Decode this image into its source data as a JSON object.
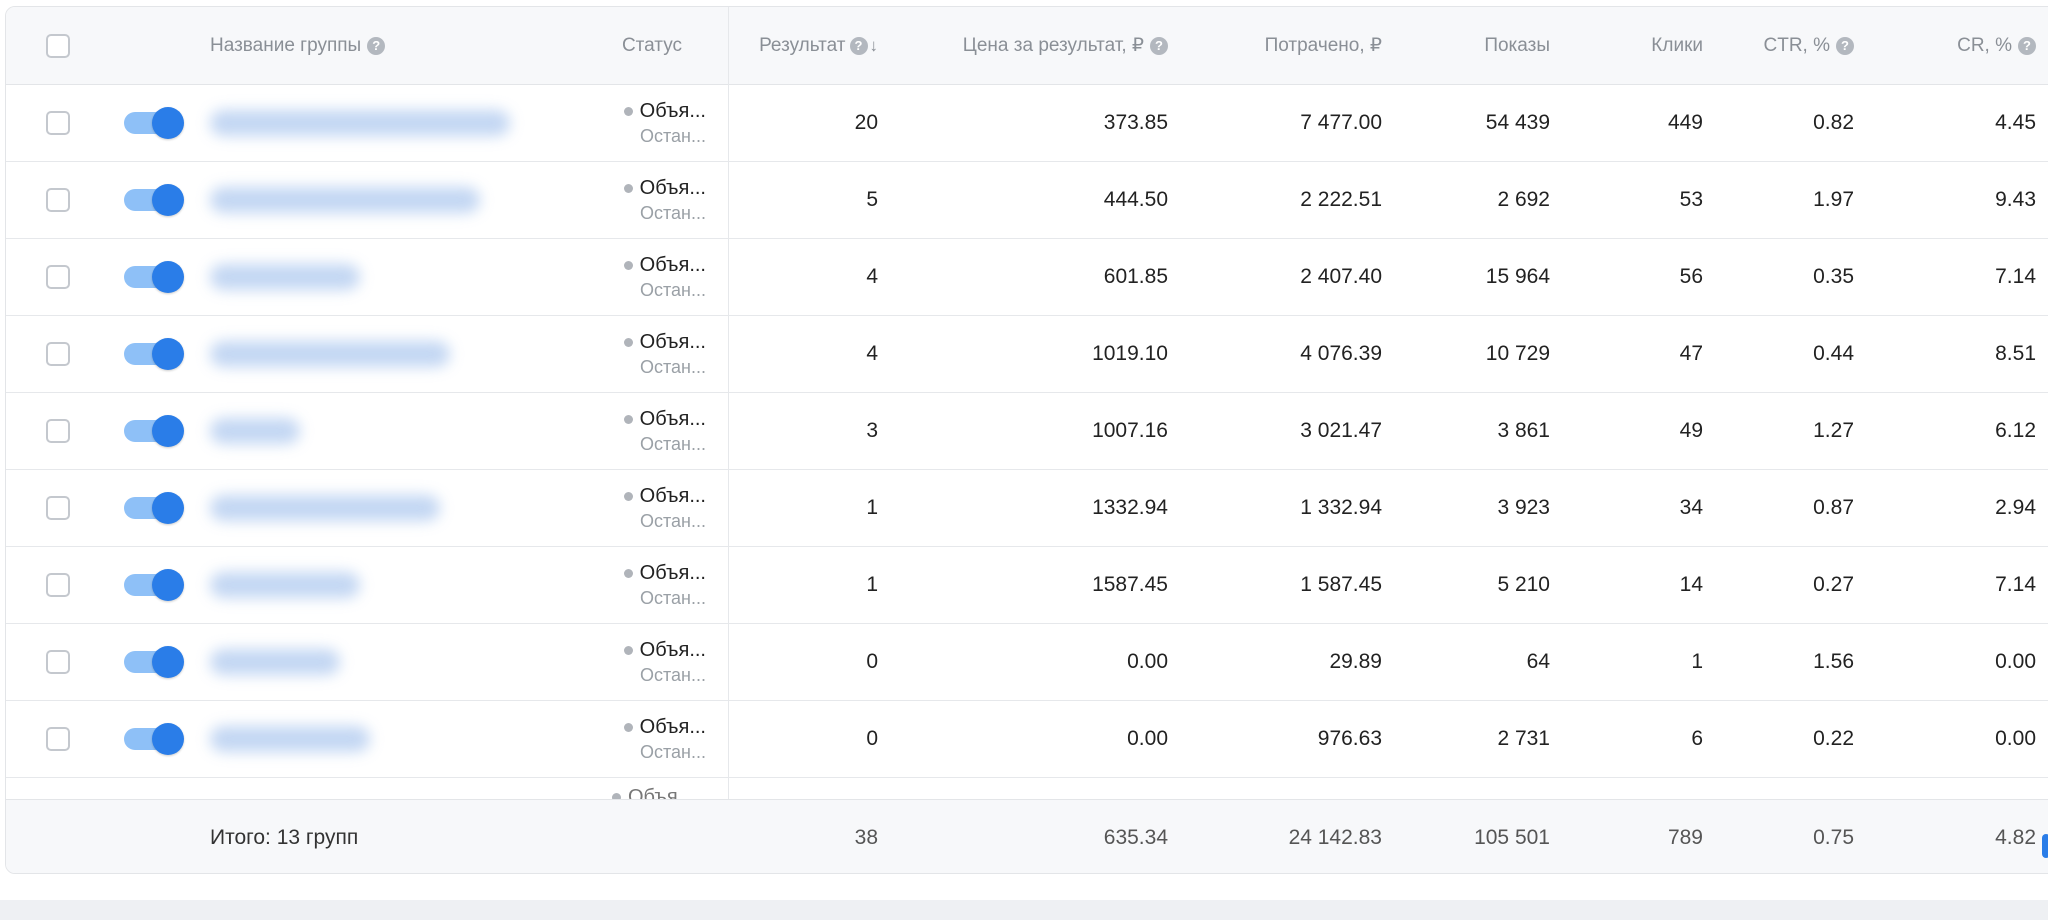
{
  "header": {
    "name": "Название группы",
    "status": "Статус",
    "result": "Результат",
    "price": "Цена за результат, ₽",
    "spent": "Потрачено, ₽",
    "impressions": "Показы",
    "clicks": "Клики",
    "ctr": "CTR, %",
    "cr": "CR, %"
  },
  "rows": [
    {
      "status1": "Объя...",
      "status2": "Остан...",
      "result": "20",
      "price": "373.85",
      "spent": "7 477.00",
      "impressions": "54 439",
      "clicks": "449",
      "ctr": "0.82",
      "cr": "4.45"
    },
    {
      "status1": "Объя...",
      "status2": "Остан...",
      "result": "5",
      "price": "444.50",
      "spent": "2 222.51",
      "impressions": "2 692",
      "clicks": "53",
      "ctr": "1.97",
      "cr": "9.43"
    },
    {
      "status1": "Объя...",
      "status2": "Остан...",
      "result": "4",
      "price": "601.85",
      "spent": "2 407.40",
      "impressions": "15 964",
      "clicks": "56",
      "ctr": "0.35",
      "cr": "7.14"
    },
    {
      "status1": "Объя...",
      "status2": "Остан...",
      "result": "4",
      "price": "1019.10",
      "spent": "4 076.39",
      "impressions": "10 729",
      "clicks": "47",
      "ctr": "0.44",
      "cr": "8.51"
    },
    {
      "status1": "Объя...",
      "status2": "Остан...",
      "result": "3",
      "price": "1007.16",
      "spent": "3 021.47",
      "impressions": "3 861",
      "clicks": "49",
      "ctr": "1.27",
      "cr": "6.12"
    },
    {
      "status1": "Объя...",
      "status2": "Остан...",
      "result": "1",
      "price": "1332.94",
      "spent": "1 332.94",
      "impressions": "3 923",
      "clicks": "34",
      "ctr": "0.87",
      "cr": "2.94"
    },
    {
      "status1": "Объя...",
      "status2": "Остан...",
      "result": "1",
      "price": "1587.45",
      "spent": "1 587.45",
      "impressions": "5 210",
      "clicks": "14",
      "ctr": "0.27",
      "cr": "7.14"
    },
    {
      "status1": "Объя...",
      "status2": "Остан...",
      "result": "0",
      "price": "0.00",
      "spent": "29.89",
      "impressions": "64",
      "clicks": "1",
      "ctr": "1.56",
      "cr": "0.00"
    },
    {
      "status1": "Объя...",
      "status2": "Остан...",
      "result": "0",
      "price": "0.00",
      "spent": "976.63",
      "impressions": "2 731",
      "clicks": "6",
      "ctr": "0.22",
      "cr": "0.00"
    }
  ],
  "partial_row": {
    "status1": "Объя..."
  },
  "footer": {
    "label": "Итого: 13 групп",
    "result": "38",
    "price": "635.34",
    "spent": "24 142.83",
    "impressions": "105 501",
    "clicks": "789",
    "ctr": "0.75",
    "cr": "4.82"
  },
  "icons": {
    "help": "question-circle-icon",
    "sort": "arrow-down-icon"
  }
}
